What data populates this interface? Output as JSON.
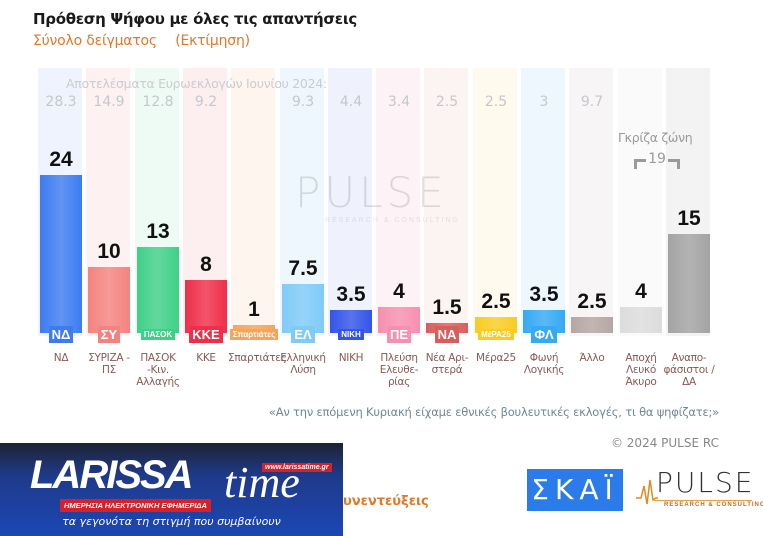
{
  "header": {
    "title": "Πρόθεση Ψήφου με όλες τις απαντήσεις",
    "subtitle_1": "Σύνολο δείγματος",
    "subtitle_2": "(Εκτίμηση)"
  },
  "euro_caption": "Αποτελέσματα Ευρωεκλογών Ιουνίου 2024:",
  "grey_zone": {
    "label": "Γκρίζα ζώνη",
    "value": "19"
  },
  "watermark": {
    "name": "PULSE",
    "tag": "RESEARCH & CONSULTING"
  },
  "columns": [
    {
      "label": "ΝΔ",
      "value": "24",
      "euro": "28.3",
      "logo": "ΝΔ",
      "bar": "#3d7cf0",
      "bg": "#eef3fd"
    },
    {
      "label": "ΣΥΡΙΖΑ - ΠΣ",
      "value": "10",
      "euro": "14.9",
      "logo": "ΣΥ",
      "bar": "#f4837f",
      "bg": "#fdf1f1"
    },
    {
      "label": "ΠΑΣΟΚ -Κιν. Αλλαγής",
      "value": "13",
      "euro": "12.8",
      "logo": "ΠΑΣΟΚ",
      "bar": "#3fd088",
      "bg": "#eefbf4"
    },
    {
      "label": "ΚΚΕ",
      "value": "8",
      "euro": "9.2",
      "logo": "ΚΚΕ",
      "bar": "#ef2f4a",
      "bg": "#fdeef0"
    },
    {
      "label": "Σπαρτιάτες",
      "value": "1",
      "euro": "",
      "logo": "Σπαρτιάτες",
      "bar": "#f5a55a",
      "bg": "#fef6ee"
    },
    {
      "label": "Ελληνική Λύση",
      "value": "7.5",
      "euro": "9.3",
      "logo": "ΕΛ",
      "bar": "#7fcbf8",
      "bg": "#eef7fd"
    },
    {
      "label": "ΝΙΚΗ",
      "value": "3.5",
      "euro": "4.4",
      "logo": "ΝΙΚΗ",
      "bar": "#3354e8",
      "bg": "#eff1fd"
    },
    {
      "label": "Πλεύση Ελευθε- ρίας",
      "value": "4",
      "euro": "3.4",
      "logo": "ΠΕ",
      "bar": "#f78fb0",
      "bg": "#fdf2f5"
    },
    {
      "label": "Νέα Αρι- στερά",
      "value": "1.5",
      "euro": "2.5",
      "logo": "ΝΑ",
      "bar": "#d85d5d",
      "bg": "#fcf3f3"
    },
    {
      "label": "Μέρα25",
      "value": "2.5",
      "euro": "2.5",
      "logo": "ΜέΡΑ25",
      "bar": "#f8cc22",
      "bg": "#fefbee"
    },
    {
      "label": "Φωνή Λογικής",
      "value": "3.5",
      "euro": "3",
      "logo": "ΦΛ",
      "bar": "#35a9f4",
      "bg": "#eef7fe"
    },
    {
      "label": "Άλλο",
      "value": "2.5",
      "euro": "9.7",
      "logo": "",
      "bar": "#b4a6a3",
      "bg": "#f7f5f5"
    },
    {
      "label": "Αποχή Λευκό Άκυρο",
      "value": "4",
      "euro": "",
      "logo": "",
      "bar": "#dcdcdc",
      "bg": "#fafafa"
    },
    {
      "label": "Αναπο- φάσιστοι / ΔΑ",
      "value": "15",
      "euro": "",
      "logo": "",
      "bar": "#a3a3a3",
      "bg": "#f3f3f3"
    }
  ],
  "footer": {
    "question": "«Αν την επόμενη Κυριακή είχαμε εθνικές βουλευτικές εκλογές, τι θα ψηφίζατε;»",
    "copyright": "© 2024 PULSE RC",
    "interviews_fragment": "υνεντεύξεις"
  },
  "banner": {
    "brand": "LARISSA",
    "brand2": "time",
    "url": "www.larissatime.gr",
    "tag_red": "ΗΜΕΡΗΣΙΑ ΗΛΕΚΤΡΟΝΙΚΗ ΕΦΗΜΕΡΙΔΑ",
    "tagline": "τα γεγονότα τη στιγμή που συμβαίνουν"
  },
  "logos": {
    "skai": "ΣΚΑΪ",
    "pulse": "PULSE",
    "pulse_tag": "RESEARCH & CONSULTING"
  },
  "chart_data": {
    "type": "bar",
    "title": "Πρόθεση Ψήφου με όλες τις απαντήσεις",
    "subtitle": "Σύνολο δείγματος (Εκτίμηση)",
    "categories": [
      "ΝΔ",
      "ΣΥΡΙΖΑ - ΠΣ",
      "ΠΑΣΟΚ -Κιν. Αλλαγής",
      "ΚΚΕ",
      "Σπαρτιάτες",
      "Ελληνική Λύση",
      "ΝΙΚΗ",
      "Πλεύση Ελευθερίας",
      "Νέα Αριστερά",
      "Μέρα25",
      "Φωνή Λογικής",
      "Άλλο",
      "Αποχή Λευκό Άκυρο",
      "Αναποφάσιστοι / ΔΑ"
    ],
    "series": [
      {
        "name": "Πρόθεση Ψήφου",
        "values": [
          24,
          10,
          13,
          8,
          1,
          7.5,
          3.5,
          4,
          1.5,
          2.5,
          3.5,
          2.5,
          4,
          15
        ]
      },
      {
        "name": "Αποτελέσματα Ευρωεκλογών Ιουνίου 2024",
        "values": [
          28.3,
          14.9,
          12.8,
          9.2,
          null,
          9.3,
          4.4,
          3.4,
          2.5,
          2.5,
          3,
          9.7,
          null,
          null
        ]
      }
    ],
    "annotations": [
      "Γκρίζα ζώνη 19 (Αποχή/Λευκό/Άκυρο + Αναποφάσιστοι)"
    ],
    "xlabel": "",
    "ylabel": "%",
    "ylim": [
      0,
      26
    ],
    "grid": false,
    "legend": "none"
  }
}
